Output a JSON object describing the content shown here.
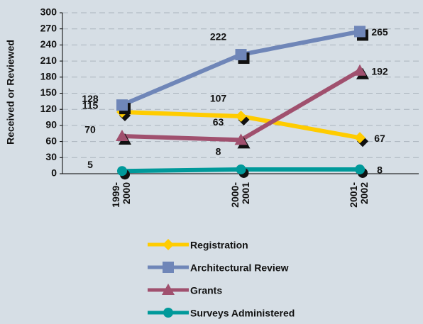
{
  "chart_data": {
    "type": "line",
    "y_label": "Received or Reviewed",
    "categories": [
      "1999- 2000",
      "2000- 2001",
      "2001- 2002"
    ],
    "series": [
      {
        "name": "Registration",
        "color": "#ffcc00",
        "marker": "diamond",
        "values": [
          115,
          107,
          67
        ]
      },
      {
        "name": "Architectural Review",
        "color": "#6f86b8",
        "marker": "square",
        "values": [
          128,
          222,
          265
        ]
      },
      {
        "name": "Grants",
        "color": "#a0506e",
        "marker": "triangle",
        "values": [
          70,
          63,
          192
        ]
      },
      {
        "name": "Surveys Administered",
        "color": "#00999a",
        "marker": "circle",
        "values": [
          5,
          8,
          8
        ]
      }
    ],
    "ylim": [
      0,
      300
    ],
    "yticks": [
      0,
      30,
      60,
      90,
      120,
      150,
      180,
      210,
      240,
      270,
      300
    ],
    "grid": true
  }
}
